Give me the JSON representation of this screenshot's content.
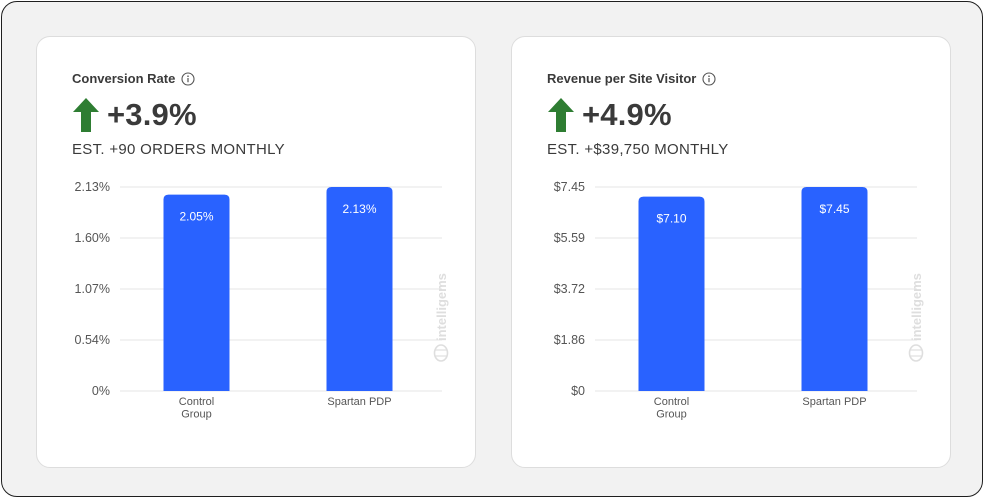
{
  "colors": {
    "bar": "#2962ff",
    "arrow": "#2e7d32",
    "text": "#3a3a3a",
    "axis_text": "#555555",
    "grid": "#e6e6e6",
    "watermark": "#dedede"
  },
  "watermark": "intelligems",
  "cards": [
    {
      "title": "Conversion Rate",
      "info_icon": "info-icon",
      "trend_icon": "arrow-up-icon",
      "headline": "+3.9%",
      "subline": "EST. +90 ORDERS MONTHLY"
    },
    {
      "title": "Revenue per Site Visitor",
      "info_icon": "info-icon",
      "trend_icon": "arrow-up-icon",
      "headline": "+4.9%",
      "subline": "EST. +$39,750 MONTHLY"
    }
  ],
  "chart_data": [
    {
      "type": "bar",
      "categories": [
        "Control\nGroup",
        "Spartan PDP"
      ],
      "values": [
        2.05,
        2.13
      ],
      "data_labels": [
        "2.05%",
        "2.13%"
      ],
      "y_ticks": [
        "0%",
        "0.54%",
        "1.07%",
        "1.60%",
        "2.13%"
      ],
      "ylim": [
        0,
        2.13
      ],
      "grid": true,
      "title": "",
      "xlabel": "",
      "ylabel": ""
    },
    {
      "type": "bar",
      "categories": [
        "Control\nGroup",
        "Spartan PDP"
      ],
      "values": [
        7.1,
        7.45
      ],
      "data_labels": [
        "$7.10",
        "$7.45"
      ],
      "y_ticks": [
        "$0",
        "$1.86",
        "$3.72",
        "$5.59",
        "$7.45"
      ],
      "ylim": [
        0,
        7.45
      ],
      "grid": true,
      "title": "",
      "xlabel": "",
      "ylabel": ""
    }
  ]
}
